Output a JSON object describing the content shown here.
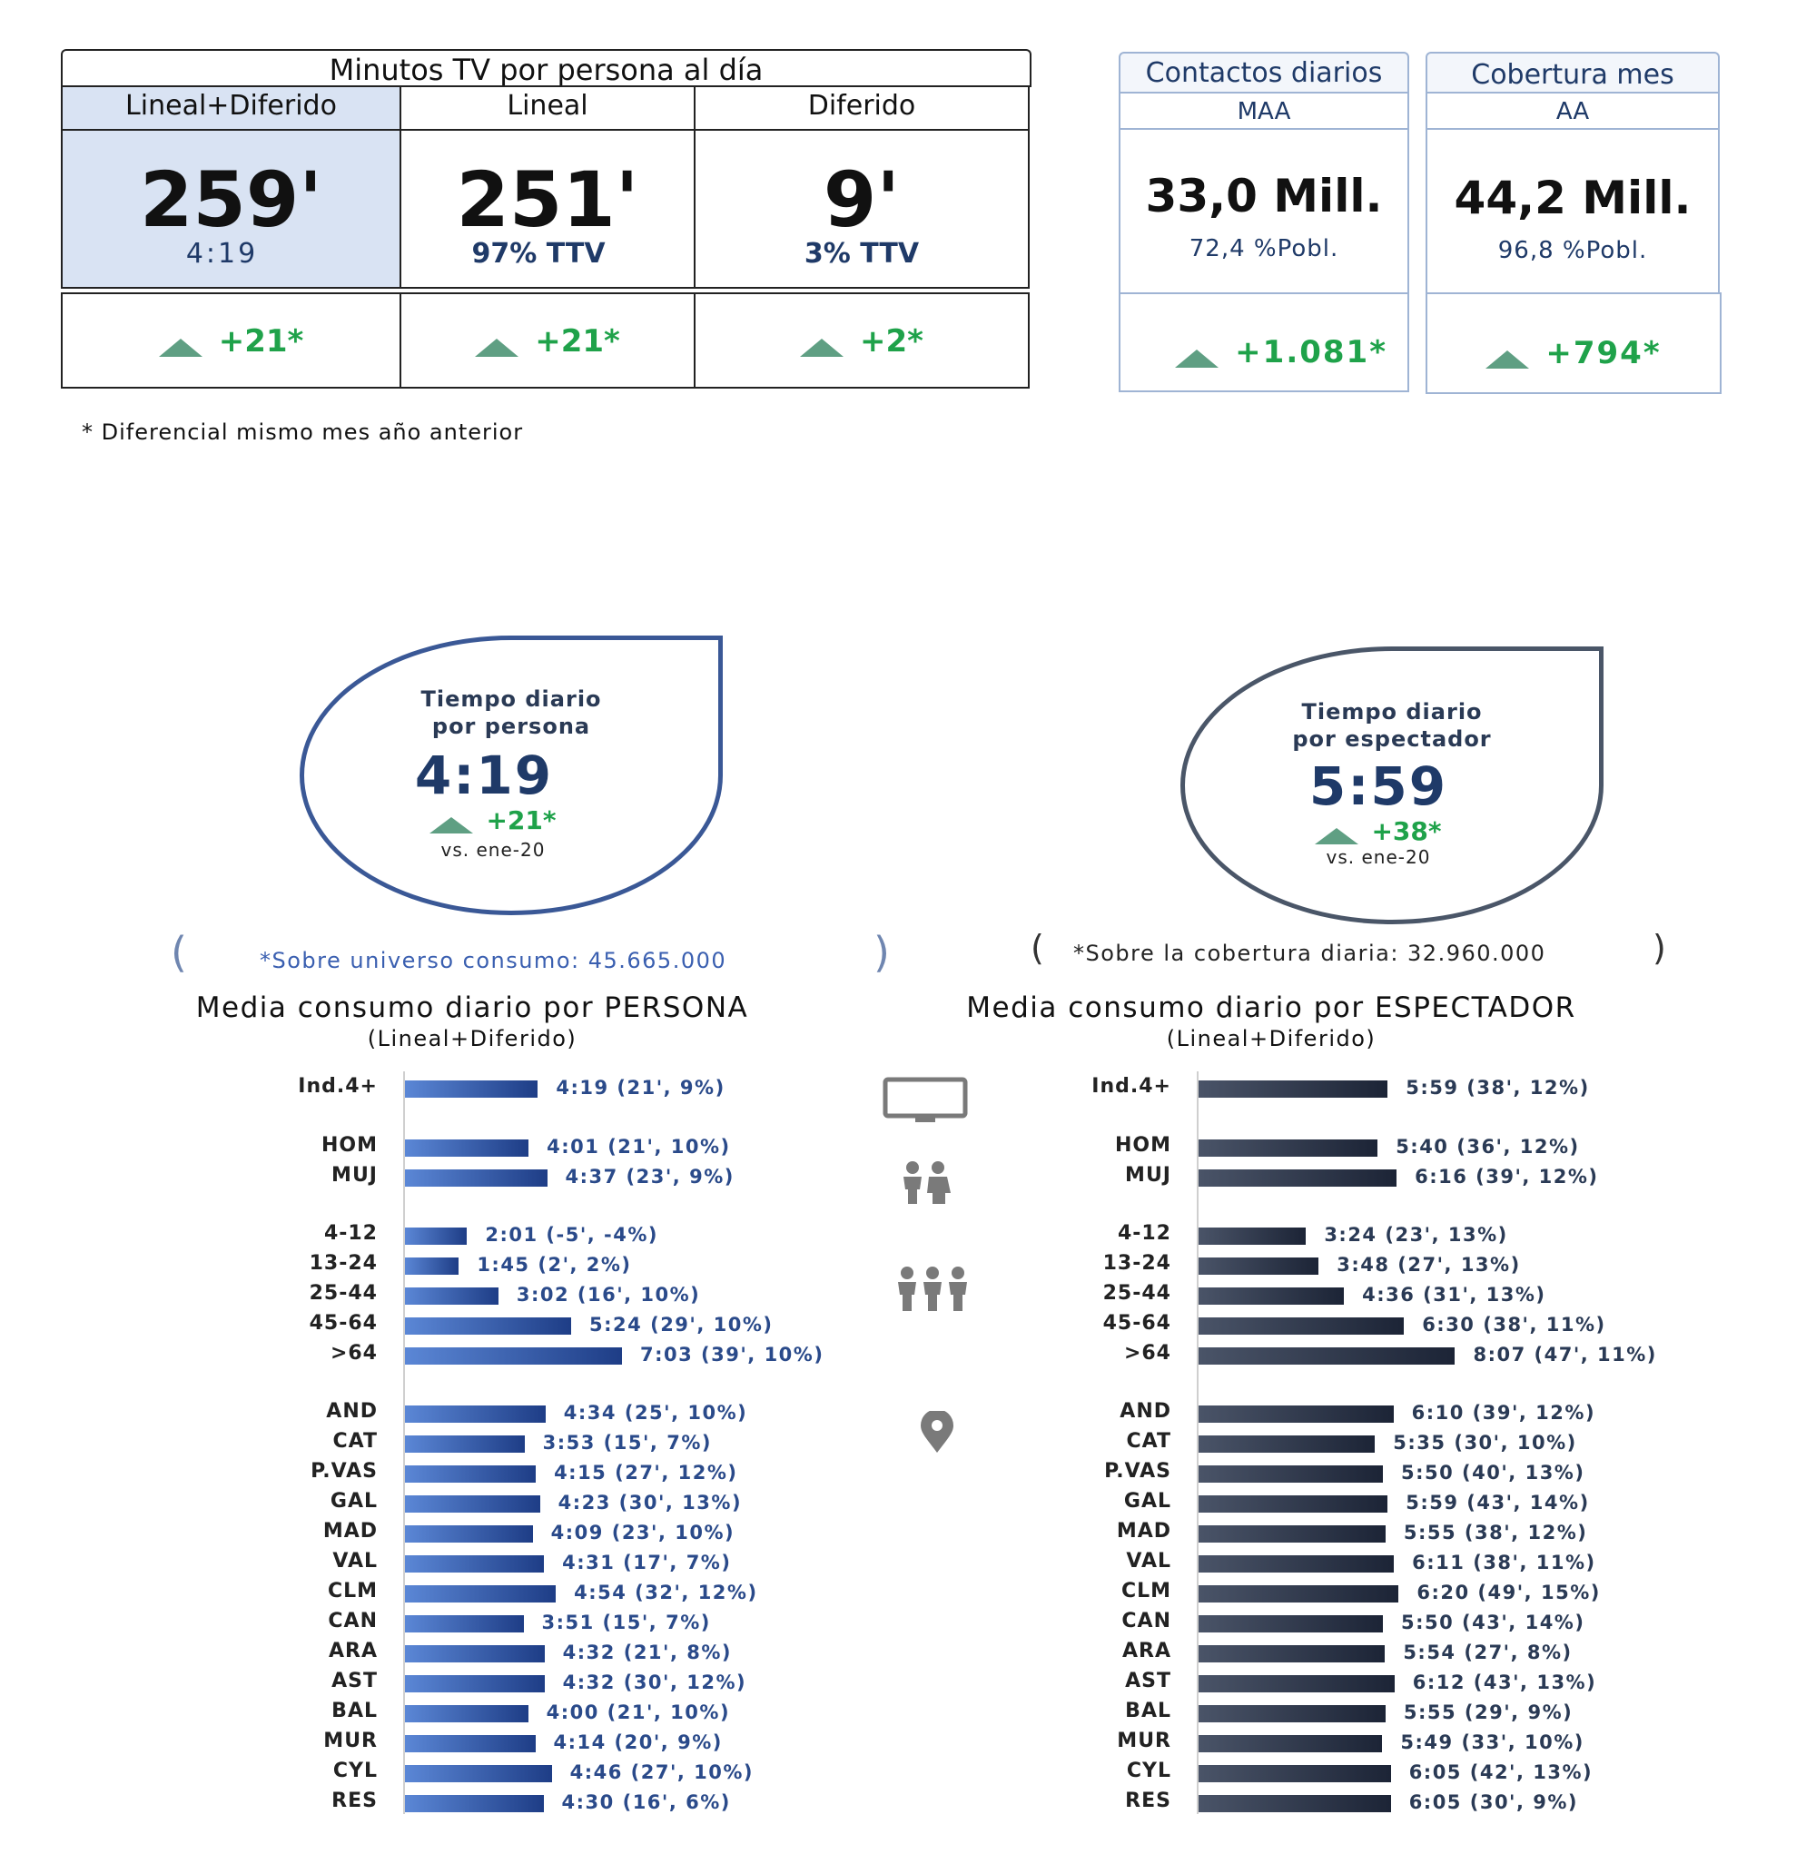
{
  "kpi": {
    "title": "Minutos TV por persona al día",
    "cols": [
      {
        "header": "Lineal+Diferido",
        "value": "259'",
        "sub": "4:19",
        "delta": "+21*"
      },
      {
        "header": "Lineal",
        "value": "251'",
        "sub": "97% TTV",
        "delta": "+21*"
      },
      {
        "header": "Diferido",
        "value": "9'",
        "sub": "3% TTV",
        "delta": "+2*"
      }
    ],
    "footnote": "* Diferencial  mismo mes año anterior"
  },
  "reach": [
    {
      "title": "Contactos diarios",
      "sub": "MAA",
      "value": "33,0 Mill.",
      "pct": "72,4 %Pobl.",
      "delta": "+1.081*"
    },
    {
      "title": "Cobertura mes",
      "sub": "AA",
      "value": "44,2 Mill.",
      "pct": "96,8 %Pobl.",
      "delta": "+794*"
    }
  ],
  "bubbles": [
    {
      "title1": "Tiempo diario",
      "title2": "por persona",
      "value": "4:19",
      "delta": "+21*",
      "vs": "vs. ene-20"
    },
    {
      "title1": "Tiempo diario",
      "title2": "por espectador",
      "value": "5:59",
      "delta": "+38*",
      "vs": "vs. ene-20"
    }
  ],
  "notes": [
    "*Sobre universo consumo: 45.665.000",
    "*Sobre la cobertura diaria: 32.960.000"
  ],
  "icons": [
    "tv-icon",
    "couple-icon",
    "group-icon",
    "location-pin-icon"
  ],
  "colors": {
    "green": "#1fa24a",
    "navy": "#1f3a68",
    "bar_persona": "#2a4fa5",
    "bar_espectador": "#2b3447",
    "highlight": "#d9e3f3"
  },
  "chart_data": [
    {
      "type": "bar",
      "orientation": "horizontal",
      "title": "Media consumo diario por PERSONA",
      "subtitle": "(Lineal+Diferido)",
      "categories": [
        "Ind.4+",
        "HOM",
        "MUJ",
        "4-12",
        "13-24",
        "25-44",
        "45-64",
        ">64",
        "AND",
        "CAT",
        "P.VAS",
        "GAL",
        "MAD",
        "VAL",
        "CLM",
        "CAN",
        "ARA",
        "AST",
        "BAL",
        "MUR",
        "CYL",
        "RES"
      ],
      "values": [
        259,
        241,
        277,
        121,
        105,
        182,
        324,
        423,
        274,
        233,
        255,
        263,
        249,
        271,
        294,
        231,
        272,
        272,
        240,
        254,
        286,
        270
      ],
      "labels": [
        "4:19 (21', 9%)",
        "4:01 (21', 10%)",
        "4:37 (23', 9%)",
        "2:01 (-5', -4%)",
        "1:45 (2', 2%)",
        "3:02 (16', 10%)",
        "5:24 (29', 10%)",
        "7:03 (39', 10%)",
        "4:34 (25', 10%)",
        "3:53 (15', 7%)",
        "4:15 (27', 12%)",
        "4:23 (30', 13%)",
        "4:09 (23', 10%)",
        "4:31 (17', 7%)",
        "4:54 (32', 12%)",
        "3:51 (15', 7%)",
        "4:32 (21', 8%)",
        "4:32 (30', 12%)",
        "4:00 (21', 10%)",
        "4:14 (20', 9%)",
        "4:46 (27', 10%)",
        "4:30 (16', 6%)"
      ]
    },
    {
      "type": "bar",
      "orientation": "horizontal",
      "title": "Media consumo diario por ESPECTADOR",
      "subtitle": "(Lineal+Diferido)",
      "categories": [
        "Ind.4+",
        "HOM",
        "MUJ",
        "4-12",
        "13-24",
        "25-44",
        "45-64",
        ">64",
        "AND",
        "CAT",
        "P.VAS",
        "GAL",
        "MAD",
        "VAL",
        "CLM",
        "CAN",
        "ARA",
        "AST",
        "BAL",
        "MUR",
        "CYL",
        "RES"
      ],
      "values": [
        359,
        340,
        376,
        204,
        228,
        276,
        390,
        487,
        370,
        335,
        350,
        359,
        355,
        371,
        380,
        350,
        354,
        372,
        355,
        349,
        365,
        365
      ],
      "labels": [
        "5:59 (38', 12%)",
        "5:40 (36', 12%)",
        "6:16 (39', 12%)",
        "3:24 (23', 13%)",
        "3:48 (27', 13%)",
        "4:36 (31', 13%)",
        "6:30 (38', 11%)",
        "8:07 (47', 11%)",
        "6:10 (39', 12%)",
        "5:35 (30', 10%)",
        "5:50 (40', 13%)",
        "5:59 (43', 14%)",
        "5:55 (38', 12%)",
        "6:11 (38', 11%)",
        "6:20 (49', 15%)",
        "5:50 (43', 14%)",
        "5:54 (27', 8%)",
        "6:12 (43', 13%)",
        "5:55 (29', 9%)",
        "5:49 (33', 10%)",
        "6:05 (42', 13%)",
        "6:05 (30', 9%)"
      ]
    }
  ]
}
